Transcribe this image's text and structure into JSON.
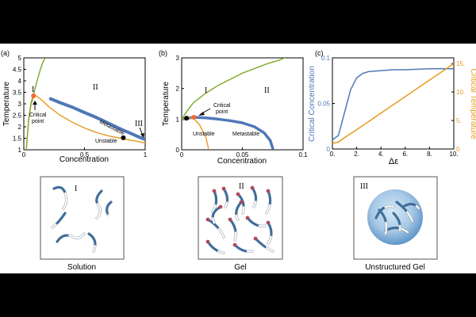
{
  "panels": {
    "a": {
      "label": "(a)",
      "xlabel": "Concentration",
      "ylabel": "Temperature",
      "xticks": [
        "0",
        "0.5",
        "1"
      ],
      "yticks": [
        "1",
        "1.5",
        "2",
        "2.5",
        "3",
        "3.5",
        "4",
        "4.5",
        "5"
      ],
      "regions": [
        "I",
        "II",
        "III"
      ],
      "annotations": {
        "critical": "Critical point",
        "unstable": "Unstable",
        "metastable": "Metastable"
      }
    },
    "b": {
      "label": "(b)",
      "xlabel": "Concentration",
      "ylabel": "Temperature",
      "xticks": [
        "0",
        "0.05",
        "0.1"
      ],
      "yticks": [
        "0",
        "1",
        "2",
        "3"
      ],
      "regions": [
        "I",
        "II"
      ],
      "annotations": {
        "critical": "Critical point",
        "unstable": "Unstable",
        "metastable": "Metastable"
      }
    },
    "c": {
      "label": "(c)",
      "xlabel": "Δε",
      "ylabel_left": "Critical Concentration",
      "ylabel_right": "Critical Temperature",
      "xticks": [
        "0.",
        "2.",
        "4.",
        "6.",
        "8.",
        "10."
      ],
      "yticks_left": [
        "0",
        "0.05",
        "0.1"
      ],
      "yticks_right": [
        "0",
        "5.",
        "10.",
        "15."
      ]
    }
  },
  "schematics": [
    {
      "roman": "I",
      "caption": "Solution"
    },
    {
      "roman": "II",
      "caption": "Gel"
    },
    {
      "roman": "III",
      "caption": "Unstructured Gel"
    }
  ],
  "colors": {
    "blue": "#4f78b8",
    "orange": "#e69a1e",
    "green": "#7aa82a",
    "critical_point": "#f06a30"
  },
  "chart_data": [
    {
      "type": "line",
      "xlim": [
        0,
        1
      ],
      "ylim": [
        1,
        5
      ],
      "series": [
        {
          "x": [
            0.02,
            0.04,
            0.06,
            0.08,
            0.1,
            0.14,
            0.2,
            0.3,
            0.4,
            0.5,
            0.6,
            0.7,
            0.8,
            0.9,
            0.95,
            1.0
          ],
          "y": [
            1.0,
            2.3,
            3.0,
            3.3,
            3.35,
            3.2,
            2.9,
            2.5,
            2.2,
            1.95,
            1.75,
            1.6,
            1.5,
            1.4,
            1.35,
            1.3
          ]
        },
        {
          "x": [
            0.22,
            0.3,
            0.4,
            0.5,
            0.6,
            0.7,
            0.8,
            0.9,
            0.95,
            1.0
          ],
          "y": [
            3.22,
            3.05,
            2.85,
            2.62,
            2.4,
            2.15,
            1.9,
            1.67,
            1.55,
            1.45
          ]
        },
        {
          "x": [
            0.02,
            0.04,
            0.06,
            0.08,
            0.1,
            0.12,
            0.14,
            0.16,
            0.18
          ],
          "y": [
            1.0,
            2.3,
            3.05,
            3.4,
            3.8,
            4.2,
            4.55,
            4.85,
            5.0
          ]
        }
      ],
      "points": [
        {
          "x": 0.08,
          "y": 3.35
        },
        {
          "x": 0.82,
          "y": 1.52
        }
      ]
    },
    {
      "type": "line",
      "xlim": [
        0,
        0.1
      ],
      "ylim": [
        0,
        3
      ],
      "series": [
        {
          "x": [
            0.0,
            0.01,
            0.02,
            0.03,
            0.04,
            0.05,
            0.06,
            0.068,
            0.073,
            0.075
          ],
          "y": [
            1.0,
            1.06,
            1.04,
            1.0,
            0.95,
            0.88,
            0.75,
            0.55,
            0.3,
            0.05
          ]
        },
        {
          "x": [
            0.0,
            0.005,
            0.01,
            0.015,
            0.02,
            0.022
          ],
          "y": [
            1.0,
            1.06,
            1.02,
            0.8,
            0.4,
            0.05
          ]
        },
        {
          "x": [
            0.0,
            0.005,
            0.01,
            0.02,
            0.03,
            0.04,
            0.05,
            0.06,
            0.07,
            0.08,
            0.085
          ],
          "y": [
            1.0,
            1.3,
            1.55,
            1.85,
            2.1,
            2.3,
            2.5,
            2.65,
            2.8,
            2.92,
            3.0
          ]
        }
      ],
      "points": [
        {
          "x": 0.004,
          "y": 1.03
        },
        {
          "x": 0.01,
          "y": 1.06
        }
      ]
    },
    {
      "type": "line",
      "xlim": [
        0,
        10
      ],
      "series": [
        {
          "axis": "left",
          "ylim": [
            0,
            0.1
          ],
          "x": [
            0,
            0.5,
            1,
            1.5,
            2,
            2.5,
            3,
            4,
            5,
            6,
            8,
            10
          ],
          "y": [
            0.01,
            0.015,
            0.04,
            0.065,
            0.078,
            0.083,
            0.085,
            0.086,
            0.087,
            0.087,
            0.088,
            0.088
          ]
        },
        {
          "axis": "right",
          "ylim": [
            0,
            16
          ],
          "x": [
            0,
            0.5,
            1,
            2,
            4,
            6,
            8,
            10
          ],
          "y": [
            1.0,
            1.2,
            2.0,
            3.4,
            6.3,
            9.2,
            12.1,
            15.0
          ]
        }
      ]
    }
  ]
}
